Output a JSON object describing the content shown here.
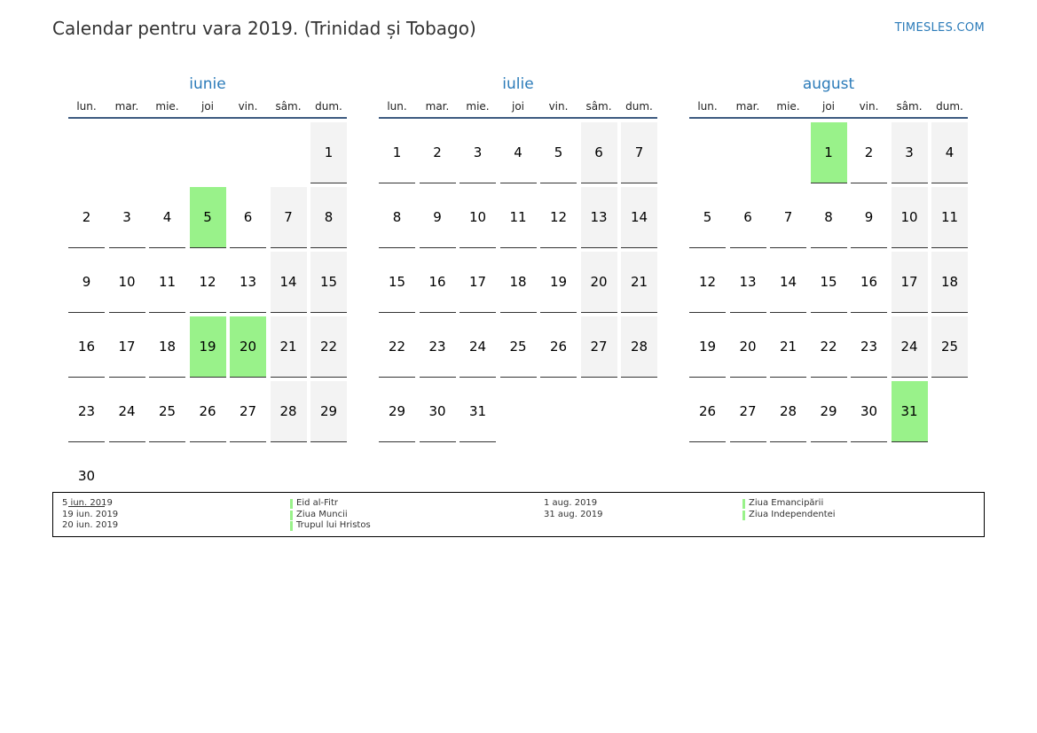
{
  "header": {
    "title": "Calendar pentru vara 2019. (Trinidad și Tobago)",
    "site": "TIMESLES.COM"
  },
  "weekdays": [
    "lun.",
    "mar.",
    "mie.",
    "joi",
    "vin.",
    "sâm.",
    "dum."
  ],
  "colors": {
    "accent": "#2b7bb9",
    "holiday": "#99f28a",
    "weekend": "#f3f3f3",
    "header_rule": "#3d5a80"
  },
  "months": [
    {
      "name": "iunie",
      "first_weekday": 6,
      "days": 30,
      "holidays": [
        5,
        19,
        20
      ]
    },
    {
      "name": "iulie",
      "first_weekday": 0,
      "days": 31,
      "holidays": []
    },
    {
      "name": "august",
      "first_weekday": 3,
      "days": 31,
      "holidays": [
        1,
        31
      ]
    }
  ],
  "legend": {
    "columns": [
      {
        "entries": [
          {
            "date": "5 iun. 2019",
            "name": "Eid al-Fitr"
          },
          {
            "date": "19 iun. 2019",
            "name": "Ziua Muncii"
          },
          {
            "date": "20 iun. 2019",
            "name": "Trupul lui Hristos"
          }
        ]
      },
      {
        "entries": [
          {
            "date": "1 aug. 2019",
            "name": "Ziua Emancipării"
          },
          {
            "date": "31 aug. 2019",
            "name": "Ziua Independentei"
          }
        ]
      }
    ]
  }
}
